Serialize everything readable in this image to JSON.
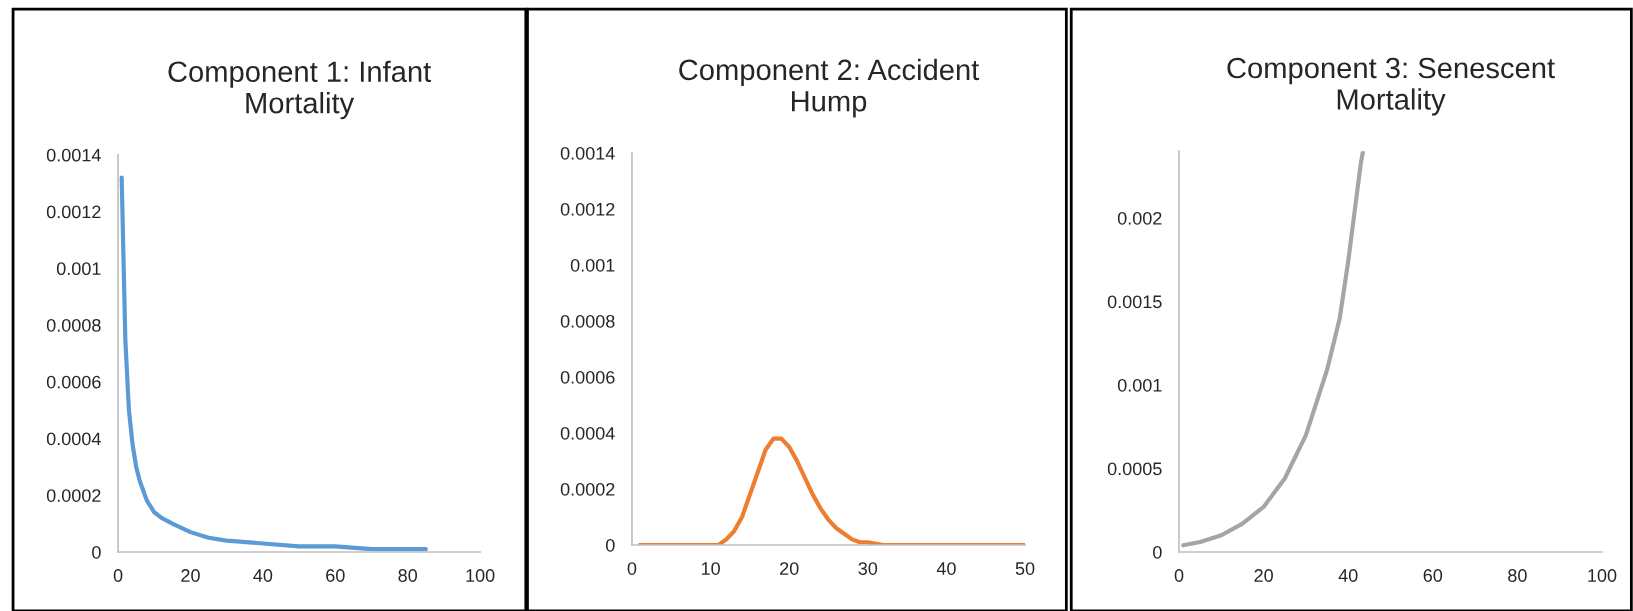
{
  "chart_data": [
    {
      "type": "line",
      "title": "Component 1: Infant\nMortality",
      "xlim": [
        0,
        100
      ],
      "xticks": [
        0,
        20,
        40,
        60,
        80,
        100
      ],
      "ylim": [
        0,
        0.0014
      ],
      "yticks": [
        0,
        0.0002,
        0.0004,
        0.0006,
        0.0008,
        0.001,
        0.0012,
        0.0014
      ],
      "grid": false,
      "series": [
        {
          "color": "#5b9bd5",
          "x": [
            1,
            2,
            3,
            4,
            5,
            6,
            8,
            10,
            12,
            15,
            20,
            25,
            30,
            40,
            50,
            60,
            70,
            85
          ],
          "values": [
            0.00132,
            0.00075,
            0.0005,
            0.00038,
            0.0003,
            0.00025,
            0.00018,
            0.00014,
            0.00012,
            0.0001,
            7e-05,
            5e-05,
            4e-05,
            3e-05,
            2e-05,
            2e-05,
            1e-05,
            1e-05
          ]
        }
      ]
    },
    {
      "type": "line",
      "title": "Component 2: Accident\nHump",
      "xlim": [
        0,
        50
      ],
      "xticks": [
        0,
        10,
        20,
        30,
        40,
        50
      ],
      "ylim": [
        0,
        0.0014
      ],
      "yticks": [
        0,
        0.0002,
        0.0004,
        0.0006,
        0.0008,
        0.001,
        0.0012,
        0.0014
      ],
      "grid": false,
      "series": [
        {
          "color": "#ed7d31",
          "x": [
            1,
            5,
            10,
            11,
            12,
            13,
            14,
            15,
            16,
            17,
            18,
            19,
            20,
            21,
            22,
            23,
            24,
            25,
            26,
            27,
            28,
            29,
            30,
            32,
            35,
            40,
            45,
            50
          ],
          "values": [
            0,
            0,
            0,
            0,
            2e-05,
            5e-05,
            0.0001,
            0.00018,
            0.00026,
            0.00034,
            0.00038,
            0.00038,
            0.00035,
            0.0003,
            0.00024,
            0.00018,
            0.00013,
            9e-05,
            6e-05,
            4e-05,
            2e-05,
            1e-05,
            1e-05,
            0,
            0,
            0,
            0,
            0
          ]
        }
      ]
    },
    {
      "type": "line",
      "title": "Component 3: Senescent\nMortality",
      "xlim": [
        0,
        100
      ],
      "xticks": [
        0,
        20,
        40,
        60,
        80,
        100
      ],
      "ylim": [
        0,
        0.0024
      ],
      "yticks": [
        0,
        0.0005,
        0.001,
        0.0015,
        0.002
      ],
      "grid": false,
      "series": [
        {
          "color": "#a5a5a5",
          "x": [
            1,
            5,
            10,
            15,
            20,
            25,
            30,
            35,
            38,
            40,
            43,
            43.5
          ],
          "values": [
            4e-05,
            6e-05,
            0.0001,
            0.00017,
            0.00027,
            0.00044,
            0.0007,
            0.00109,
            0.0014,
            0.00174,
            0.00233,
            0.0024
          ]
        }
      ]
    }
  ]
}
